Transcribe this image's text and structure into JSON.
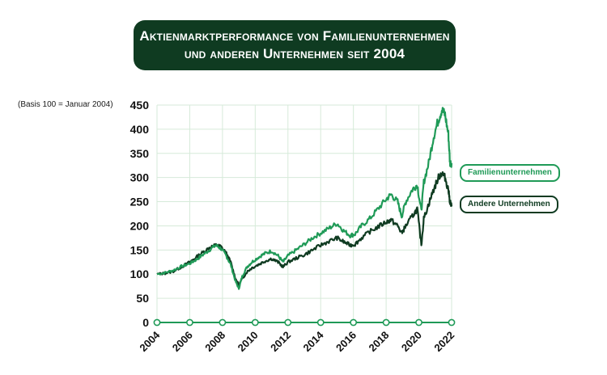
{
  "chart_data": {
    "type": "line",
    "title_line1": "Aktienmarktperformance von Familienunternehmen",
    "title_line2": "und anderen Unternehmen seit 2004",
    "subtitle": "(Basis 100 = Januar 2004)",
    "xlim": [
      2004,
      2022
    ],
    "ylim": [
      0,
      450
    ],
    "xticks": [
      "2004",
      "2006",
      "2008",
      "2010",
      "2012",
      "2014",
      "2016",
      "2018",
      "2020",
      "2022"
    ],
    "yticks": [
      "0",
      "50",
      "100",
      "150",
      "200",
      "250",
      "300",
      "350",
      "400",
      "450"
    ],
    "grid": true,
    "colors": {
      "family": "#1f9a57",
      "other": "#0f3b21",
      "grid": "#d6ead9",
      "title_bg": "#0f3b21"
    },
    "series": [
      {
        "name": "Familienunternehmen",
        "x": [
          2004.0,
          2004.5,
          2005.0,
          2005.5,
          2006.0,
          2006.4,
          2006.8,
          2007.2,
          2007.6,
          2007.9,
          2008.2,
          2008.5,
          2008.8,
          2009.0,
          2009.2,
          2009.5,
          2009.8,
          2010.2,
          2010.6,
          2011.0,
          2011.4,
          2011.7,
          2012.0,
          2012.5,
          2013.0,
          2013.5,
          2014.0,
          2014.5,
          2015.0,
          2015.4,
          2015.8,
          2016.1,
          2016.5,
          2017.0,
          2017.5,
          2018.0,
          2018.3,
          2018.7,
          2018.95,
          2019.2,
          2019.6,
          2019.9,
          2020.15,
          2020.3,
          2020.6,
          2020.9,
          2021.2,
          2021.4,
          2021.6,
          2021.8,
          2021.9,
          2022.0
        ],
        "values": [
          100,
          103,
          108,
          116,
          122,
          130,
          140,
          150,
          160,
          153,
          140,
          120,
          85,
          70,
          95,
          115,
          125,
          135,
          143,
          148,
          138,
          125,
          138,
          150,
          162,
          175,
          185,
          195,
          205,
          190,
          180,
          183,
          200,
          215,
          235,
          255,
          265,
          250,
          220,
          250,
          275,
          285,
          230,
          290,
          330,
          385,
          420,
          440,
          430,
          390,
          330,
          330
        ]
      },
      {
        "name": "Andere Unternehmen",
        "x": [
          2004.0,
          2004.5,
          2005.0,
          2005.5,
          2006.0,
          2006.4,
          2006.8,
          2007.2,
          2007.6,
          2007.9,
          2008.2,
          2008.5,
          2008.8,
          2009.0,
          2009.2,
          2009.5,
          2009.8,
          2010.2,
          2010.6,
          2011.0,
          2011.4,
          2011.7,
          2012.0,
          2012.5,
          2013.0,
          2013.5,
          2014.0,
          2014.5,
          2015.0,
          2015.4,
          2015.8,
          2016.1,
          2016.5,
          2017.0,
          2017.5,
          2018.0,
          2018.3,
          2018.7,
          2018.95,
          2019.2,
          2019.6,
          2019.9,
          2020.15,
          2020.3,
          2020.6,
          2020.9,
          2021.2,
          2021.4,
          2021.6,
          2021.8,
          2021.9,
          2022.0
        ],
        "values": [
          100,
          102,
          106,
          115,
          125,
          135,
          145,
          155,
          160,
          157,
          145,
          125,
          90,
          78,
          90,
          105,
          113,
          120,
          127,
          132,
          125,
          115,
          125,
          133,
          140,
          150,
          160,
          168,
          175,
          167,
          160,
          162,
          175,
          188,
          198,
          208,
          212,
          200,
          185,
          200,
          220,
          235,
          160,
          215,
          245,
          275,
          300,
          310,
          300,
          275,
          250,
          240
        ]
      }
    ]
  }
}
